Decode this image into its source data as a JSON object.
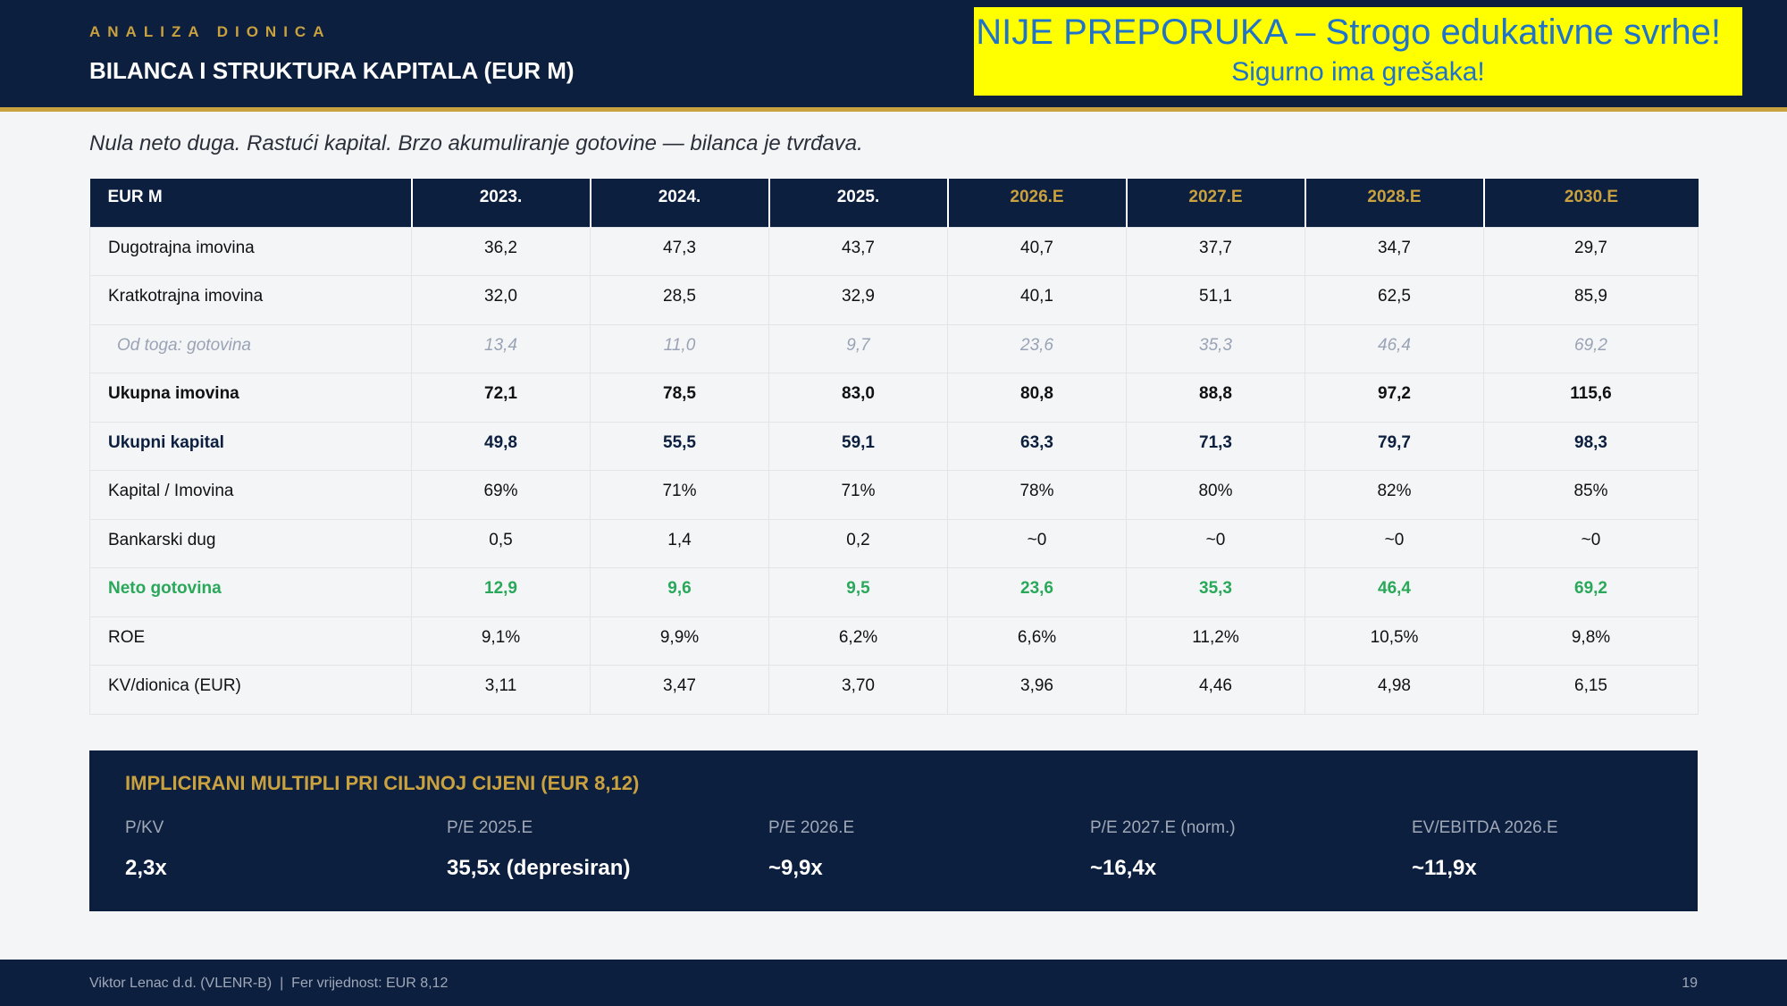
{
  "header": {
    "eyebrow": "ANALIZA DIONICA",
    "title": "BILANCA I STRUKTURA KAPITALA (EUR M)"
  },
  "disclaimer": {
    "main": "NIJE PREPORUKA – Strogo edukativne svrhe!",
    "sub": "Sigurno ima grešaka!"
  },
  "subtitle": "Nula neto duga. Rastući kapital. Brzo akumuliranje gotovine — bilanca je tvrđava.",
  "colors": {
    "navy": "#0c1f3f",
    "gold": "#c9a13f",
    "green": "#2aa85a",
    "muted": "#9aa3b5",
    "disclaimer_bg": "#ffff00",
    "disclaimer_text": "#1f73c8"
  },
  "table": {
    "headers": [
      "EUR M",
      "2023.",
      "2024.",
      "2025.",
      "2026.E",
      "2027.E",
      "2028.E",
      "2030.E"
    ],
    "rows": [
      {
        "style": "normal",
        "cells": [
          "Dugotrajna imovina",
          "36,2",
          "47,3",
          "43,7",
          "40,7",
          "37,7",
          "34,7",
          "29,7"
        ]
      },
      {
        "style": "normal",
        "cells": [
          "Kratkotrajna imovina",
          "32,0",
          "28,5",
          "32,9",
          "40,1",
          "51,1",
          "62,5",
          "85,9"
        ]
      },
      {
        "style": "sub",
        "cells": [
          "Od toga: gotovina",
          "13,4",
          "11,0",
          "9,7",
          "23,6",
          "35,3",
          "46,4",
          "69,2"
        ]
      },
      {
        "style": "bold",
        "cells": [
          "Ukupna imovina",
          "72,1",
          "78,5",
          "83,0",
          "80,8",
          "88,8",
          "97,2",
          "115,6"
        ]
      },
      {
        "style": "navy",
        "cells": [
          "Ukupni kapital",
          "49,8",
          "55,5",
          "59,1",
          "63,3",
          "71,3",
          "79,7",
          "98,3"
        ]
      },
      {
        "style": "normal",
        "cells": [
          "Kapital / Imovina",
          "69%",
          "71%",
          "71%",
          "78%",
          "80%",
          "82%",
          "85%"
        ]
      },
      {
        "style": "normal",
        "cells": [
          "Bankarski dug",
          "0,5",
          "1,4",
          "0,2",
          "~0",
          "~0",
          "~0",
          "~0"
        ]
      },
      {
        "style": "green",
        "cells": [
          "Neto gotovina",
          "12,9",
          "9,6",
          "9,5",
          "23,6",
          "35,3",
          "46,4",
          "69,2"
        ]
      },
      {
        "style": "normal",
        "cells": [
          "ROE",
          "9,1%",
          "9,9%",
          "6,2%",
          "6,6%",
          "11,2%",
          "10,5%",
          "9,8%"
        ]
      },
      {
        "style": "normal",
        "cells": [
          "KV/dionica (EUR)",
          "3,11",
          "3,47",
          "3,70",
          "3,96",
          "4,46",
          "4,98",
          "6,15"
        ]
      }
    ]
  },
  "multiples": {
    "title": "IMPLICIRANI MULTIPLI PRI CILJNOJ CIJENI (EUR 8,12)",
    "items": [
      {
        "label": "P/KV",
        "value": "2,3x"
      },
      {
        "label": "P/E 2025.E",
        "value": "35,5x (depresiran)"
      },
      {
        "label": "P/E 2026.E",
        "value": "~9,9x"
      },
      {
        "label": "P/E 2027.E (norm.)",
        "value": "~16,4x"
      },
      {
        "label": "EV/EBITDA 2026.E",
        "value": "~11,9x"
      }
    ]
  },
  "footer": {
    "text": "Viktor Lenac d.d. (VLENR-B)  |  Fer vrijednost: EUR 8,12",
    "page": "19"
  }
}
